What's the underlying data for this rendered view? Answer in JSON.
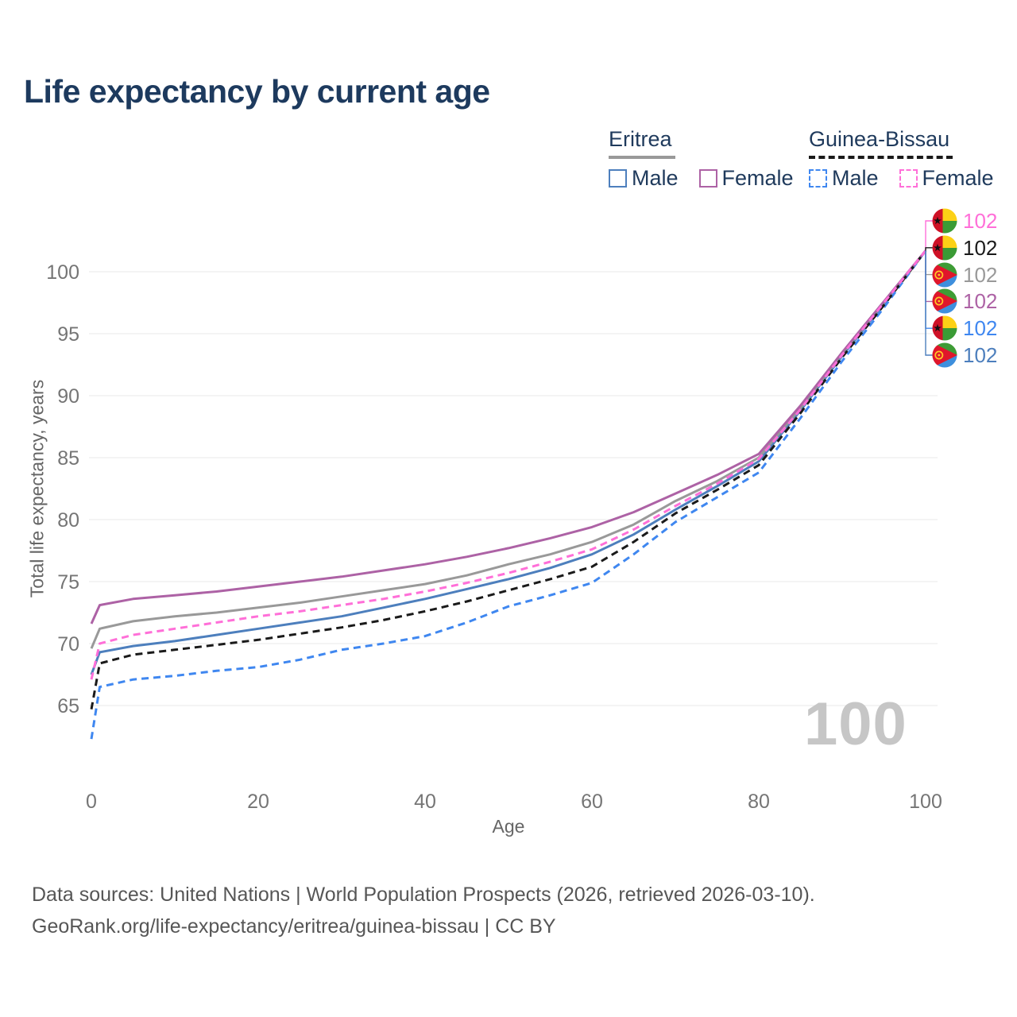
{
  "title": "Life expectancy by current age",
  "legend": {
    "groups": [
      {
        "name": "Eritrea",
        "style": "solid",
        "line_color": "#999999",
        "items": [
          {
            "label": "Male",
            "color": "#4d7fbd",
            "dash": false
          },
          {
            "label": "Female",
            "color": "#ad62a5",
            "dash": false
          }
        ]
      },
      {
        "name": "Guinea-Bissau",
        "style": "dashed",
        "line_color": "#1a1a1a",
        "items": [
          {
            "label": "Male",
            "color": "#3f87f0",
            "dash": true
          },
          {
            "label": "Female",
            "color": "#ff6fd8",
            "dash": true
          }
        ]
      }
    ]
  },
  "chart_data": {
    "type": "line",
    "title": "Life expectancy by current age",
    "xlabel": "Age",
    "ylabel": "Total life expectancy, years",
    "xlim": [
      0,
      100
    ],
    "ylim": [
      62,
      103
    ],
    "xticks": [
      0,
      20,
      40,
      60,
      80,
      100
    ],
    "yticks": [
      65,
      70,
      75,
      80,
      85,
      90,
      95,
      100
    ],
    "grid": "horizontal-only",
    "legend_position": "top-right",
    "watermark": "100",
    "x": [
      0,
      1,
      5,
      10,
      15,
      20,
      25,
      30,
      35,
      40,
      45,
      50,
      55,
      60,
      65,
      70,
      75,
      80,
      85,
      90,
      95,
      100
    ],
    "series": [
      {
        "name": "Eritrea Male",
        "country": "Eritrea",
        "sex": "male",
        "color": "#4d7fbd",
        "dash": false,
        "values": [
          67.5,
          69.3,
          69.8,
          70.2,
          70.7,
          71.2,
          71.7,
          72.2,
          72.9,
          73.6,
          74.4,
          75.2,
          76.1,
          77.2,
          78.8,
          80.8,
          82.7,
          84.7,
          88.8,
          93.2,
          97.4,
          101.7
        ]
      },
      {
        "name": "Guinea-Bissau Male",
        "country": "Guinea-Bissau",
        "sex": "male",
        "color": "#3f87f0",
        "dash": true,
        "values": [
          62.3,
          66.5,
          67.1,
          67.4,
          67.8,
          68.1,
          68.7,
          69.5,
          70.0,
          70.6,
          71.7,
          73.0,
          73.9,
          74.9,
          77.2,
          79.8,
          81.8,
          83.8,
          88.2,
          92.8,
          97.1,
          101.7
        ]
      },
      {
        "name": "Eritrea Total",
        "country": "Eritrea",
        "sex": "all",
        "color": "#999999",
        "dash": false,
        "values": [
          69.6,
          71.2,
          71.8,
          72.2,
          72.5,
          72.9,
          73.3,
          73.8,
          74.3,
          74.8,
          75.5,
          76.4,
          77.2,
          78.2,
          79.6,
          81.5,
          83.1,
          85.0,
          89.0,
          93.4,
          97.5,
          101.7
        ]
      },
      {
        "name": "Eritrea Female",
        "country": "Eritrea",
        "sex": "female",
        "color": "#ad62a5",
        "dash": false,
        "values": [
          71.6,
          73.1,
          73.6,
          73.9,
          74.2,
          74.6,
          75.0,
          75.4,
          75.9,
          76.4,
          77.0,
          77.7,
          78.5,
          79.4,
          80.6,
          82.1,
          83.6,
          85.3,
          89.2,
          93.5,
          97.6,
          101.7
        ]
      },
      {
        "name": "Guinea-Bissau Total",
        "country": "Guinea-Bissau",
        "sex": "all",
        "color": "#1a1a1a",
        "dash": true,
        "values": [
          64.7,
          68.4,
          69.1,
          69.5,
          69.9,
          70.3,
          70.8,
          71.3,
          71.9,
          72.6,
          73.4,
          74.3,
          75.2,
          76.2,
          78.2,
          80.5,
          82.4,
          84.4,
          88.6,
          93.1,
          97.3,
          101.7
        ]
      },
      {
        "name": "Guinea-Bissau Female",
        "country": "Guinea-Bissau",
        "sex": "female",
        "color": "#ff6fd8",
        "dash": true,
        "values": [
          67.1,
          70.0,
          70.7,
          71.2,
          71.7,
          72.2,
          72.6,
          73.1,
          73.6,
          74.2,
          74.9,
          75.7,
          76.6,
          77.6,
          79.2,
          81.1,
          82.9,
          84.9,
          88.9,
          93.3,
          97.5,
          101.7
        ]
      }
    ]
  },
  "endpoints": {
    "items": [
      {
        "value": "102",
        "country": "Guinea-Bissau",
        "series": "Guinea-Bissau Female",
        "color": "#ff6fd8"
      },
      {
        "value": "102",
        "country": "Guinea-Bissau",
        "series": "Guinea-Bissau Total",
        "color": "#1a1a1a"
      },
      {
        "value": "102",
        "country": "Eritrea",
        "series": "Eritrea Total",
        "color": "#999999"
      },
      {
        "value": "102",
        "country": "Eritrea",
        "series": "Eritrea Female",
        "color": "#ad62a5"
      },
      {
        "value": "102",
        "country": "Guinea-Bissau",
        "series": "Guinea-Bissau Male",
        "color": "#3f87f0"
      },
      {
        "value": "102",
        "country": "Eritrea",
        "series": "Eritrea Male",
        "color": "#4d7fbd"
      }
    ]
  },
  "flags": {
    "eritrea": {
      "green": "#3e9c35",
      "blue": "#3e8fdd",
      "red": "#e0162b",
      "gold": "#ffc726"
    },
    "guinea_bissau": {
      "red": "#ce1126",
      "yellow": "#fcd116",
      "green": "#3a9b35",
      "star": "#111111"
    }
  },
  "footer": {
    "line1": "Data sources: United Nations | World Population Prospects (2026, retrieved 2026-03-10).",
    "line2": "GeoRank.org/life-expectancy/eritrea/guinea-bissau | CC BY"
  }
}
